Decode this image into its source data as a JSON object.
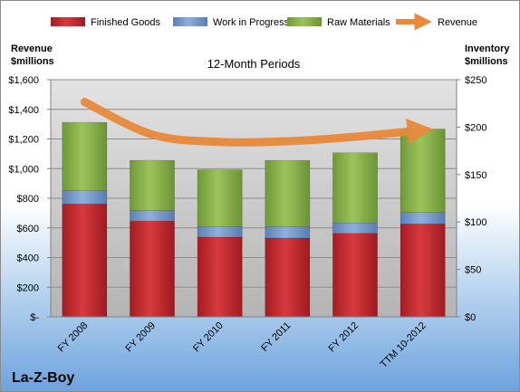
{
  "chart_data": {
    "type": "bar",
    "stacked": true,
    "subtitle": "12-Month Periods",
    "brand": "La-Z-Boy",
    "categories": [
      "FY 2008",
      "FY 2009",
      "FY 2010",
      "FY 2011",
      "FY 2012",
      "TTM 10-2012"
    ],
    "series": [
      {
        "name": "Finished Goods",
        "axis": "right",
        "color": "#c0272d",
        "values": [
          119,
          101,
          84,
          83,
          88,
          98
        ]
      },
      {
        "name": "Work in Progress",
        "axis": "right",
        "color": "#6f95c8",
        "values": [
          14,
          11,
          11,
          12,
          11,
          12
        ]
      },
      {
        "name": "Raw Materials",
        "axis": "right",
        "color": "#8ab44b",
        "values": [
          72,
          53,
          60,
          70,
          74,
          88
        ]
      },
      {
        "name": "Revenue",
        "axis": "left",
        "type": "line",
        "color": "#e88a3c",
        "values": [
          1450,
          1230,
          1180,
          1185,
          1215,
          1260
        ]
      }
    ],
    "left_axis": {
      "title_line1": "Revenue",
      "title_line2": "$millions",
      "ylim": [
        0,
        1600
      ],
      "ticks": [
        0,
        200,
        400,
        600,
        800,
        1000,
        1200,
        1400,
        1600
      ],
      "tick_labels": [
        "$-",
        "$200",
        "$400",
        "$600",
        "$800",
        "$1,000",
        "$1,200",
        "$1,400",
        "$1,600"
      ]
    },
    "right_axis": {
      "title_line1": "Inventory",
      "title_line2": "$millions",
      "ylim": [
        0,
        250
      ],
      "ticks": [
        0,
        50,
        100,
        150,
        200,
        250
      ],
      "tick_labels": [
        "$0",
        "$50",
        "$100",
        "$150",
        "$200",
        "$250"
      ]
    },
    "grid": true,
    "legend_position": "top"
  }
}
